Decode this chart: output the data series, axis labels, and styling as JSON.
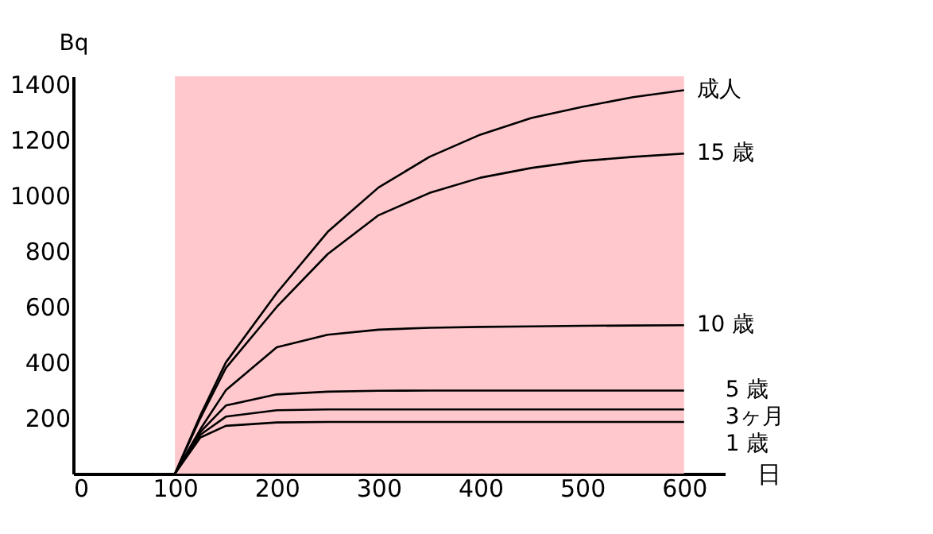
{
  "chart_data": {
    "type": "line",
    "xlabel": "日",
    "ylabel": "Bq",
    "x": [
      100,
      125,
      150,
      200,
      250,
      300,
      350,
      400,
      450,
      500,
      550,
      600
    ],
    "series": [
      {
        "name": "成人",
        "color": "#000000",
        "values": [
          0,
          210,
          400,
          650,
          870,
          1030,
          1140,
          1220,
          1280,
          1320,
          1355,
          1380
        ]
      },
      {
        "name": "15 歳",
        "color": "#000000",
        "values": [
          0,
          200,
          380,
          600,
          790,
          930,
          1010,
          1065,
          1100,
          1125,
          1140,
          1152
        ]
      },
      {
        "name": "10 歳",
        "color": "#000000",
        "values": [
          0,
          160,
          300,
          455,
          500,
          518,
          525,
          528,
          530,
          532,
          533,
          534
        ]
      },
      {
        "name": "5 歳",
        "color": "#000000",
        "values": [
          0,
          150,
          245,
          285,
          295,
          298,
          299,
          299,
          299,
          299,
          299,
          299
        ]
      },
      {
        "name": "3ヶ月",
        "color": "#000000",
        "values": [
          0,
          140,
          205,
          228,
          231,
          231,
          231,
          231,
          231,
          231,
          231,
          231
        ]
      },
      {
        "name": "1 歳",
        "color": "#000000",
        "values": [
          0,
          130,
          172,
          184,
          186,
          186,
          186,
          186,
          186,
          186,
          186,
          186
        ]
      }
    ],
    "bands": [
      {
        "axis": "x",
        "from": 100,
        "to": 600,
        "color": "#ffc8cc"
      }
    ],
    "xlim": [
      0,
      640
    ],
    "ylim": [
      0,
      1430
    ],
    "xticks": [
      0,
      100,
      200,
      300,
      400,
      500,
      600
    ],
    "yticks": [
      200,
      400,
      600,
      800,
      1000,
      1200,
      1400
    ],
    "marker": "none",
    "line_style": "solid"
  }
}
